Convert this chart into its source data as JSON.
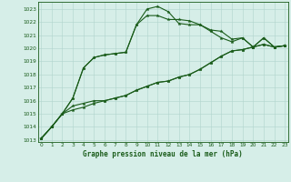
{
  "title": "Graphe pression niveau de la mer (hPa)",
  "bg_color": "#d6eee8",
  "grid_color": "#b0d4cc",
  "line_color": "#1a5c1a",
  "xlim": [
    -0.3,
    23.3
  ],
  "ylim": [
    1012.85,
    1023.55
  ],
  "yticks": [
    1013,
    1014,
    1015,
    1016,
    1017,
    1018,
    1019,
    1020,
    1021,
    1022,
    1023
  ],
  "xticks": [
    0,
    1,
    2,
    3,
    4,
    5,
    6,
    7,
    8,
    9,
    10,
    11,
    12,
    13,
    14,
    15,
    16,
    17,
    18,
    19,
    20,
    21,
    22,
    23
  ],
  "series": [
    [
      1013.1,
      1014.0,
      1015.0,
      1016.2,
      1018.5,
      1019.3,
      1019.5,
      1019.6,
      1019.7,
      1021.8,
      1023.0,
      1023.2,
      1022.8,
      1021.9,
      1021.8,
      1021.8,
      1021.4,
      1021.3,
      1020.7,
      1020.8,
      1020.1,
      1020.8,
      1020.1,
      1020.2
    ],
    [
      1013.1,
      1014.0,
      1015.0,
      1016.2,
      1018.5,
      1019.3,
      1019.5,
      1019.6,
      1019.7,
      1021.8,
      1022.5,
      1022.5,
      1022.2,
      1022.2,
      1022.1,
      1021.8,
      1021.3,
      1020.8,
      1020.5,
      1020.8,
      1020.1,
      1020.8,
      1020.1,
      1020.2
    ],
    [
      1013.1,
      1014.0,
      1015.0,
      1015.6,
      1015.8,
      1016.0,
      1016.0,
      1016.2,
      1016.4,
      1016.8,
      1017.1,
      1017.4,
      1017.5,
      1017.8,
      1018.0,
      1018.4,
      1018.9,
      1019.4,
      1019.8,
      1019.9,
      1020.1,
      1020.3,
      1020.1,
      1020.2
    ],
    [
      1013.1,
      1014.0,
      1015.0,
      1015.3,
      1015.5,
      1015.8,
      1016.0,
      1016.2,
      1016.4,
      1016.8,
      1017.1,
      1017.4,
      1017.5,
      1017.8,
      1018.0,
      1018.4,
      1018.9,
      1019.4,
      1019.8,
      1019.9,
      1020.1,
      1020.3,
      1020.1,
      1020.2
    ]
  ]
}
